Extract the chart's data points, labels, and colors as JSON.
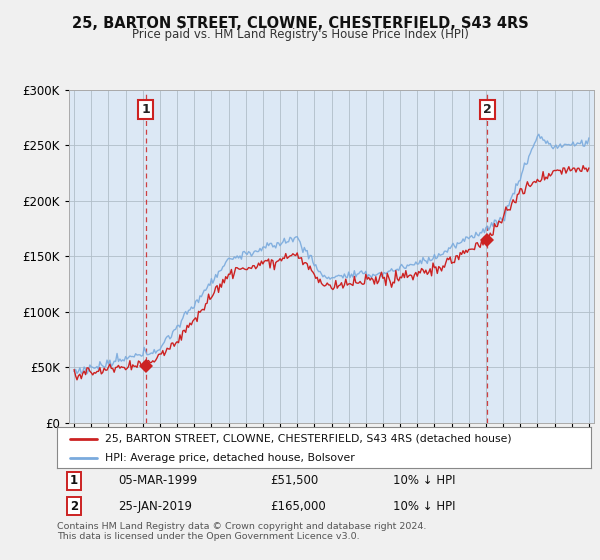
{
  "title": "25, BARTON STREET, CLOWNE, CHESTERFIELD, S43 4RS",
  "subtitle": "Price paid vs. HM Land Registry's House Price Index (HPI)",
  "legend_line1": "25, BARTON STREET, CLOWNE, CHESTERFIELD, S43 4RS (detached house)",
  "legend_line2": "HPI: Average price, detached house, Bolsover",
  "annotation1_date": "05-MAR-1999",
  "annotation1_price": "£51,500",
  "annotation1_hpi": "10% ↓ HPI",
  "annotation2_date": "25-JAN-2019",
  "annotation2_price": "£165,000",
  "annotation2_hpi": "10% ↓ HPI",
  "footer": "Contains HM Land Registry data © Crown copyright and database right 2024.\nThis data is licensed under the Open Government Licence v3.0.",
  "red_color": "#cc2222",
  "blue_color": "#7aaadd",
  "bg_color": "#f0f0f0",
  "plot_bg_color": "#dce8f5",
  "ylim": [
    0,
    300000
  ],
  "yticks": [
    0,
    50000,
    100000,
    150000,
    200000,
    250000,
    300000
  ],
  "xlim_start": 1994.7,
  "xlim_end": 2025.3,
  "marker1_x": 1999.17,
  "marker1_y": 51500,
  "marker2_x": 2019.07,
  "marker2_y": 165000,
  "vline1_x": 1999.17,
  "vline2_x": 2019.07
}
